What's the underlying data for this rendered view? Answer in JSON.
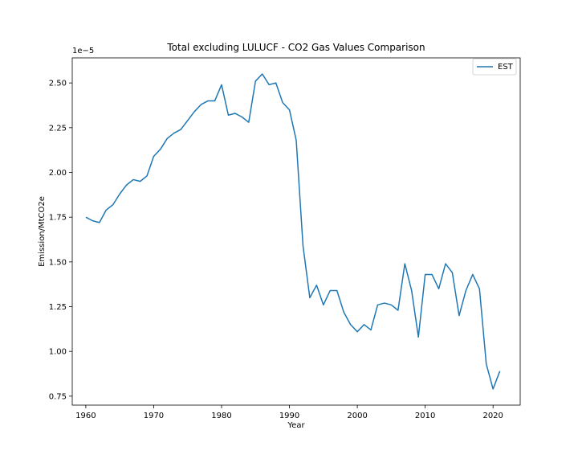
{
  "chart_data": {
    "type": "line",
    "title": "Total excluding LULUCF - CO2 Gas Values Comparison",
    "xlabel": "Year",
    "ylabel": "Emission/MtCO2e",
    "y_offset_label": "1e−5",
    "xlim": [
      1958,
      2024
    ],
    "ylim": [
      0.7,
      2.64
    ],
    "y_scale_note": "values shown in units of 1e-5",
    "x_ticks": [
      1960,
      1970,
      1980,
      1990,
      2000,
      2010,
      2020
    ],
    "y_ticks": [
      0.75,
      1.0,
      1.25,
      1.5,
      1.75,
      2.0,
      2.25,
      2.5
    ],
    "y_tick_labels": [
      "0.75",
      "1.00",
      "1.25",
      "1.50",
      "1.75",
      "2.00",
      "2.25",
      "2.50"
    ],
    "x_tick_labels": [
      "1960",
      "1970",
      "1980",
      "1990",
      "2000",
      "2010",
      "2020"
    ],
    "grid": false,
    "legend_position": "top-right",
    "colors": {
      "series": "#1f77b4"
    },
    "series": [
      {
        "name": "EST",
        "x": [
          1960,
          1961,
          1962,
          1963,
          1964,
          1965,
          1966,
          1967,
          1968,
          1969,
          1970,
          1971,
          1972,
          1973,
          1974,
          1975,
          1976,
          1977,
          1978,
          1979,
          1980,
          1981,
          1982,
          1983,
          1984,
          1985,
          1986,
          1987,
          1988,
          1989,
          1990,
          1991,
          1992,
          1993,
          1994,
          1995,
          1996,
          1997,
          1998,
          1999,
          2000,
          2001,
          2002,
          2003,
          2004,
          2005,
          2006,
          2007,
          2008,
          2009,
          2010,
          2011,
          2012,
          2013,
          2014,
          2015,
          2016,
          2017,
          2018,
          2019,
          2020,
          2021
        ],
        "values": [
          1.75,
          1.73,
          1.72,
          1.79,
          1.82,
          1.88,
          1.93,
          1.96,
          1.95,
          1.98,
          2.09,
          2.13,
          2.19,
          2.22,
          2.24,
          2.29,
          2.34,
          2.38,
          2.4,
          2.4,
          2.49,
          2.32,
          2.33,
          2.31,
          2.28,
          2.51,
          2.55,
          2.49,
          2.5,
          2.39,
          2.35,
          2.18,
          1.59,
          1.3,
          1.37,
          1.26,
          1.34,
          1.34,
          1.22,
          1.15,
          1.11,
          1.15,
          1.12,
          1.26,
          1.27,
          1.26,
          1.23,
          1.49,
          1.34,
          1.08,
          1.43,
          1.43,
          1.35,
          1.49,
          1.44,
          1.2,
          1.34,
          1.43,
          1.35,
          0.93,
          0.79,
          0.89
        ]
      }
    ]
  }
}
